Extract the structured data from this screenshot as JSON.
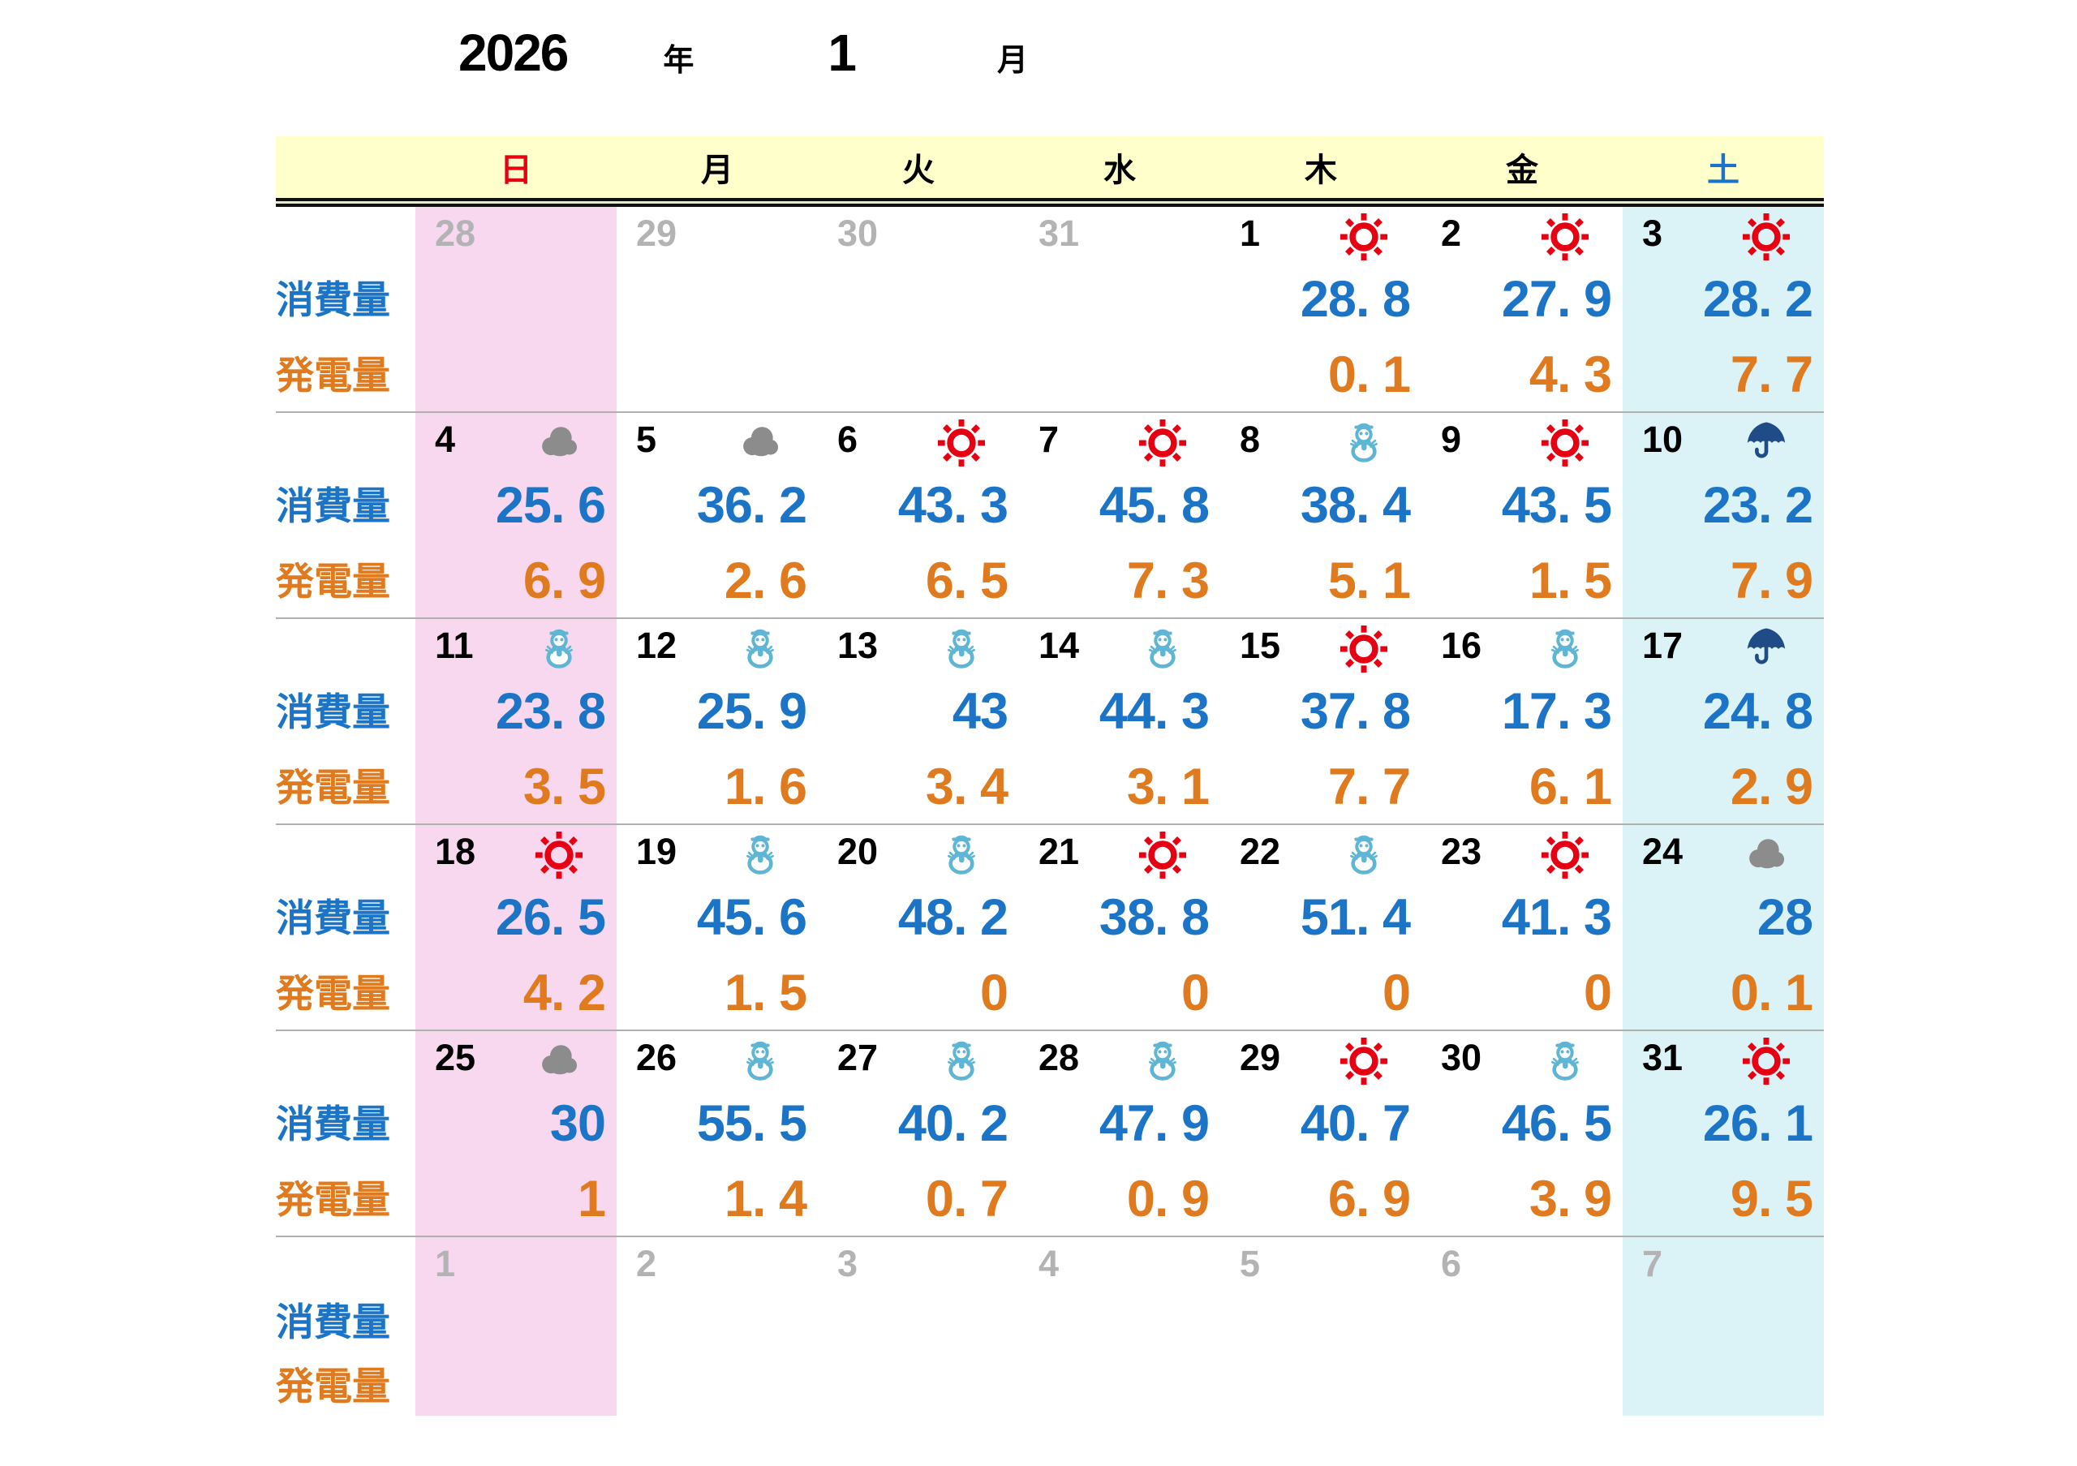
{
  "title": {
    "year": "2026",
    "year_label": "年",
    "month": "1",
    "month_label": "月"
  },
  "weekdays": [
    {
      "label": "日",
      "color": "#E60012"
    },
    {
      "label": "月",
      "color": "#000000"
    },
    {
      "label": "火",
      "color": "#000000"
    },
    {
      "label": "水",
      "color": "#000000"
    },
    {
      "label": "木",
      "color": "#000000"
    },
    {
      "label": "金",
      "color": "#000000"
    },
    {
      "label": "土",
      "color": "#1A73C8"
    }
  ],
  "row_labels": {
    "consumption": "消費量",
    "generation": "発電量"
  },
  "colors": {
    "header_bg": "#FFFFCC",
    "sunday_col_bg": "#F8D8EE",
    "saturday_col_bg": "#DBF2F7",
    "consumption": "#1B74C5",
    "generation": "#E07A1E",
    "other_month": "#B3B3B3",
    "sunday_text": "#E60012",
    "saturday_text": "#1A73C8",
    "sun_icon": "#E60012",
    "cloud_icon": "#8C8C8C",
    "snowman_icon": "#5FB5D4",
    "umbrella_icon": "#1F4C87"
  },
  "weeks": [
    {
      "days": [
        {
          "date": "28",
          "other_month": true
        },
        {
          "date": "29",
          "other_month": true
        },
        {
          "date": "30",
          "other_month": true
        },
        {
          "date": "31",
          "other_month": true
        },
        {
          "date": "1",
          "weather": "sunny",
          "consumption": "28.8",
          "generation": "0.1"
        },
        {
          "date": "2",
          "weather": "sunny",
          "consumption": "27.9",
          "generation": "4.3"
        },
        {
          "date": "3",
          "weather": "sunny",
          "consumption": "28.2",
          "generation": "7.7"
        }
      ]
    },
    {
      "days": [
        {
          "date": "4",
          "weather": "cloudy",
          "consumption": "25.6",
          "generation": "6.9"
        },
        {
          "date": "5",
          "weather": "cloudy",
          "consumption": "36.2",
          "generation": "2.6"
        },
        {
          "date": "6",
          "weather": "sunny",
          "consumption": "43.3",
          "generation": "6.5"
        },
        {
          "date": "7",
          "weather": "sunny",
          "consumption": "45.8",
          "generation": "7.3"
        },
        {
          "date": "8",
          "weather": "snow",
          "consumption": "38.4",
          "generation": "5.1"
        },
        {
          "date": "9",
          "weather": "sunny",
          "consumption": "43.5",
          "generation": "1.5"
        },
        {
          "date": "10",
          "weather": "rain",
          "consumption": "23.2",
          "generation": "7.9"
        }
      ]
    },
    {
      "days": [
        {
          "date": "11",
          "weather": "snow",
          "consumption": "23.8",
          "generation": "3.5"
        },
        {
          "date": "12",
          "weather": "snow",
          "consumption": "25.9",
          "generation": "1.6"
        },
        {
          "date": "13",
          "weather": "snow",
          "consumption": "43",
          "generation": "3.4"
        },
        {
          "date": "14",
          "weather": "snow",
          "consumption": "44.3",
          "generation": "3.1"
        },
        {
          "date": "15",
          "weather": "sunny",
          "consumption": "37.8",
          "generation": "7.7"
        },
        {
          "date": "16",
          "weather": "snow",
          "consumption": "17.3",
          "generation": "6.1"
        },
        {
          "date": "17",
          "weather": "rain",
          "consumption": "24.8",
          "generation": "2.9"
        }
      ]
    },
    {
      "days": [
        {
          "date": "18",
          "weather": "sunny",
          "consumption": "26.5",
          "generation": "4.2"
        },
        {
          "date": "19",
          "weather": "snow",
          "consumption": "45.6",
          "generation": "1.5"
        },
        {
          "date": "20",
          "weather": "snow",
          "consumption": "48.2",
          "generation": "0"
        },
        {
          "date": "21",
          "weather": "sunny",
          "consumption": "38.8",
          "generation": "0"
        },
        {
          "date": "22",
          "weather": "snow",
          "consumption": "51.4",
          "generation": "0"
        },
        {
          "date": "23",
          "weather": "sunny",
          "consumption": "41.3",
          "generation": "0"
        },
        {
          "date": "24",
          "weather": "cloudy",
          "consumption": "28",
          "generation": "0.1"
        }
      ]
    },
    {
      "days": [
        {
          "date": "25",
          "weather": "cloudy",
          "consumption": "30",
          "generation": "1"
        },
        {
          "date": "26",
          "weather": "snow",
          "consumption": "55.5",
          "generation": "1.4"
        },
        {
          "date": "27",
          "weather": "snow",
          "consumption": "40.2",
          "generation": "0.7"
        },
        {
          "date": "28",
          "weather": "snow",
          "consumption": "47.9",
          "generation": "0.9"
        },
        {
          "date": "29",
          "weather": "sunny",
          "consumption": "40.7",
          "generation": "6.9"
        },
        {
          "date": "30",
          "weather": "snow",
          "consumption": "46.5",
          "generation": "3.9"
        },
        {
          "date": "31",
          "weather": "sunny",
          "consumption": "26.1",
          "generation": "9.5"
        }
      ]
    },
    {
      "days": [
        {
          "date": "1",
          "other_month": true
        },
        {
          "date": "2",
          "other_month": true
        },
        {
          "date": "3",
          "other_month": true
        },
        {
          "date": "4",
          "other_month": true
        },
        {
          "date": "5",
          "other_month": true
        },
        {
          "date": "6",
          "other_month": true
        },
        {
          "date": "7",
          "other_month": true
        }
      ]
    }
  ]
}
